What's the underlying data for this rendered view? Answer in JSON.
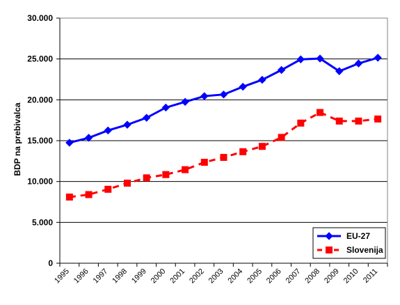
{
  "chart_data": {
    "type": "line",
    "title": "",
    "xlabel": "",
    "ylabel": "BDP na prebivalca",
    "ylim": [
      0,
      30000
    ],
    "y_ticks": [
      "0",
      "5.000",
      "10.000",
      "15.000",
      "20.000",
      "25.000",
      "30.000"
    ],
    "categories": [
      "1995",
      "1996",
      "1997",
      "1998",
      "1999",
      "2000",
      "2001",
      "2002",
      "2003",
      "2004",
      "2005",
      "2006",
      "2007",
      "2008",
      "2009",
      "2010",
      "2011"
    ],
    "grid": "horizontal",
    "legend_position": "bottom-right",
    "series": [
      {
        "name": "EU-27",
        "color": "#0000ff",
        "line_style": "solid",
        "marker": "diamond",
        "values": [
          14750,
          15350,
          16250,
          16950,
          17800,
          19050,
          19750,
          20450,
          20650,
          21600,
          22450,
          23650,
          24950,
          25050,
          23500,
          24450,
          25150
        ]
      },
      {
        "name": "Slovenija",
        "color": "#ff0000",
        "line_style": "dashed",
        "marker": "square",
        "values": [
          8100,
          8400,
          9050,
          9800,
          10450,
          10850,
          11450,
          12350,
          12950,
          13650,
          14300,
          15400,
          17150,
          18450,
          17400,
          17400,
          17650
        ]
      }
    ]
  }
}
